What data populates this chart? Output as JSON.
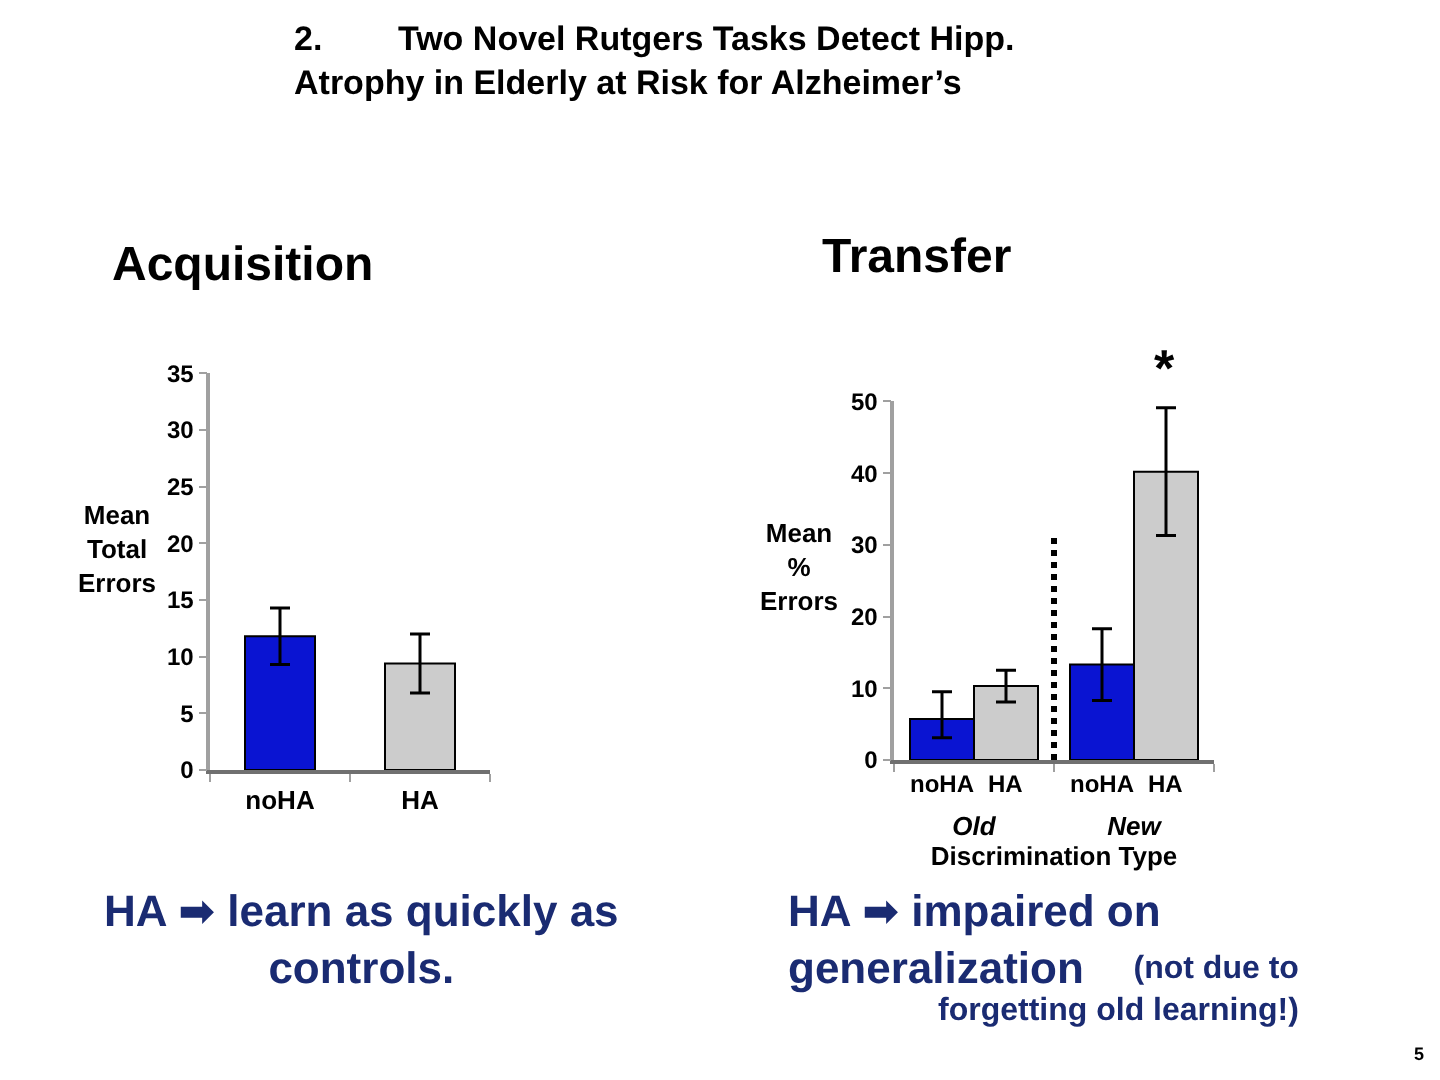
{
  "chart_data": [
    {
      "type": "bar",
      "title": "Acquisition",
      "ylabel": "Mean\nTotal\nErrors",
      "categories": [
        "noHA",
        "HA"
      ],
      "values": [
        11.8,
        9.4
      ],
      "colors": [
        "#0a14d2",
        "#cccccc"
      ],
      "errors": [
        2.5,
        2.6
      ],
      "ylim": [
        0,
        35
      ],
      "yticks": [
        0,
        5,
        10,
        15,
        20,
        25,
        30,
        35
      ],
      "legend": false,
      "annotations": [
        "2.        Two Novel Rutgers Tasks Detect Hipp.\nAtrophy in Elderly at Risk for Alzheimer’s",
        "HA ➡ learn as quickly as\ncontrols."
      ]
    },
    {
      "type": "bar",
      "title": "Transfer",
      "ylabel": "Mean\n%\nErrors",
      "xlabel": "Discrimination Type",
      "categories": [
        "Old",
        "New"
      ],
      "series": [
        {
          "name": "noHA",
          "color": "#0a14d2",
          "values": [
            5.7,
            13.3
          ],
          "errors": [
            [
              3.1,
              9.5
            ],
            5.0
          ]
        },
        {
          "name": "HA",
          "color": "#cccccc",
          "values": [
            10.3,
            40.2
          ],
          "errors": [
            2.2,
            8.9
          ]
        }
      ],
      "ylim": [
        0,
        50
      ],
      "yticks": [
        0,
        10,
        20,
        30,
        40,
        50
      ],
      "legend": false,
      "annotations": [
        "*",
        "HA ➡ impaired on\ngeneralization",
        "(not due to\nforgetting old learning!)",
        "5"
      ]
    }
  ]
}
